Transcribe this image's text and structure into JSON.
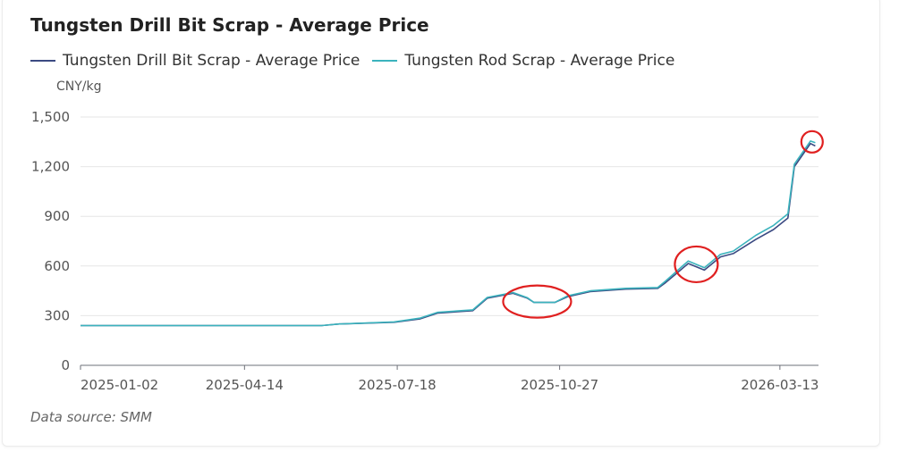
{
  "chart_data": {
    "type": "line",
    "title": "Tungsten Drill Bit Scrap - Average Price",
    "ylabel": "CNY/kg",
    "ylim": [
      0,
      1500
    ],
    "yticks": [
      0,
      300,
      600,
      900,
      1200,
      1500
    ],
    "ytick_labels": [
      "0",
      "300",
      "600",
      "900",
      "1,200",
      "1,500"
    ],
    "xlim": [
      "2025-01-02",
      "2026-04-06"
    ],
    "xtick_labels": [
      "2025-01-02",
      "2025-04-14",
      "2025-07-18",
      "2025-10-27",
      "2026-03-13"
    ],
    "grid": true,
    "legend_position": "top-left",
    "source": "Data source:  SMM",
    "x": [
      "2025-01-02",
      "2025-06-01",
      "2025-06-12",
      "2025-07-16",
      "2025-08-01",
      "2025-08-12",
      "2025-09-03",
      "2025-09-12",
      "2025-09-28",
      "2025-10-07",
      "2025-10-11",
      "2025-10-24",
      "2025-11-01",
      "2025-11-15",
      "2025-12-07",
      "2025-12-27",
      "2026-01-01",
      "2026-01-15",
      "2026-01-25",
      "2026-02-04",
      "2026-02-12",
      "2026-02-26",
      "2026-03-09",
      "2026-03-18",
      "2026-03-22",
      "2026-04-01",
      "2026-04-04"
    ],
    "series": [
      {
        "name": "Tungsten Drill Bit Scrap - Average Price",
        "color": "#3b4a82",
        "values": [
          240,
          240,
          250,
          260,
          280,
          315,
          330,
          405,
          435,
          405,
          380,
          380,
          415,
          445,
          460,
          465,
          500,
          615,
          575,
          655,
          675,
          760,
          820,
          890,
          1200,
          1340,
          1325
        ]
      },
      {
        "name": "Tungsten Rod Scrap - Average Price",
        "color": "#3bb3bd",
        "values": [
          240,
          240,
          250,
          262,
          285,
          320,
          335,
          410,
          440,
          408,
          380,
          380,
          420,
          450,
          465,
          470,
          510,
          630,
          590,
          670,
          690,
          785,
          845,
          915,
          1215,
          1355,
          1345
        ]
      }
    ],
    "annotations": [
      {
        "date": "2025-10-13",
        "value": 385
      },
      {
        "date": "2026-01-20",
        "value": 610
      },
      {
        "date": "2026-04-02",
        "value": 1350
      }
    ]
  }
}
